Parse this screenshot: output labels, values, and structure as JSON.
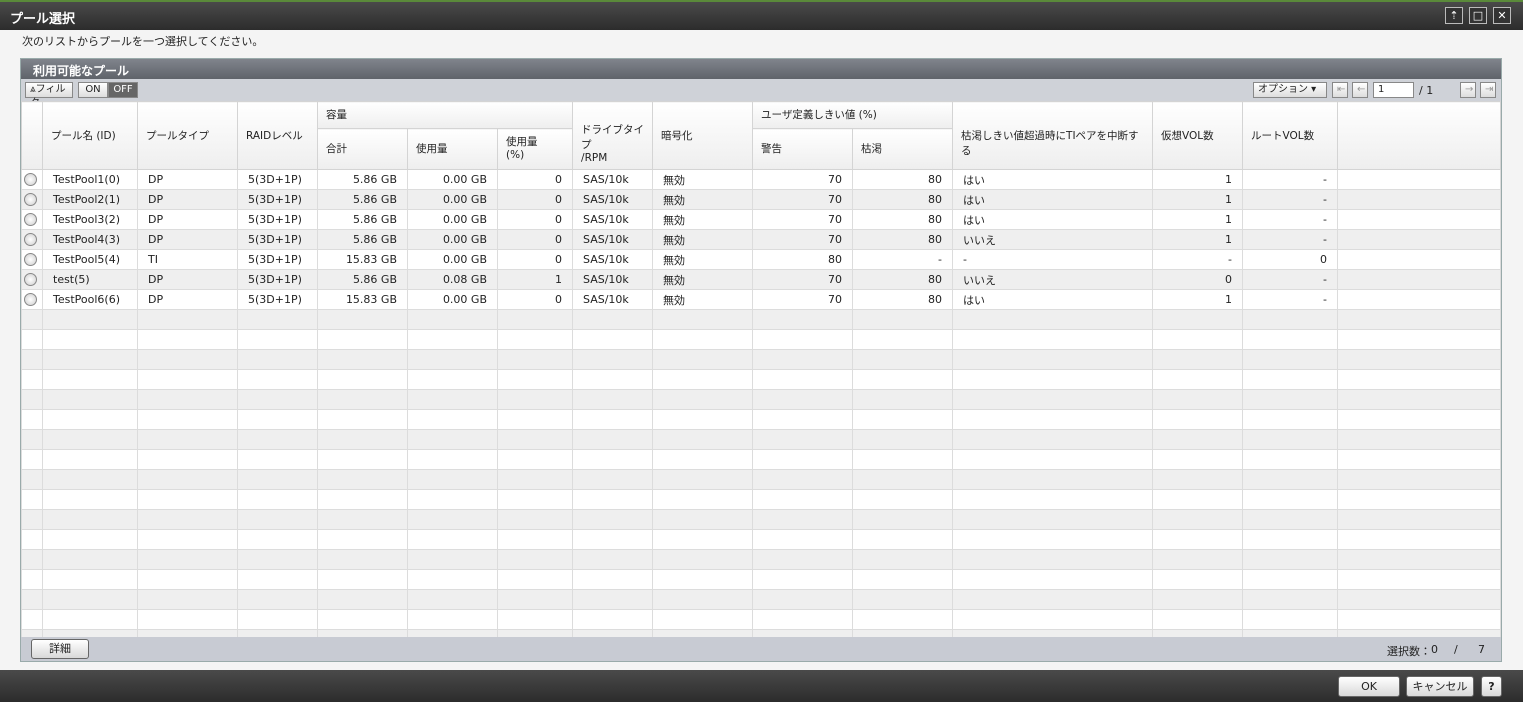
{
  "window": {
    "title": "プール選択",
    "instruction": "次のリストからプールを一つ選択してください。"
  },
  "panel": {
    "title": "利用可能なプール",
    "toolbar": {
      "filter": "フィルタ",
      "on": "ON",
      "off": "OFF",
      "options": "オプション",
      "page": "1",
      "page_total": "/ 1"
    },
    "table": {
      "headers": {
        "name": "プール名 (ID)",
        "type": "プールタイプ",
        "raid": "RAIDレベル",
        "capacity": "容量",
        "total": "合計",
        "used": "使用量",
        "used_pct": "使用量\n(%)",
        "drive": "ドライブタイプ\n/RPM",
        "encryption": "暗号化",
        "threshold": "ユーザ定義しきい値 (%)",
        "warning": "警告",
        "depletion": "枯渇",
        "suspend": "枯渇しきい値超過時にTIペアを中断する",
        "vvol": "仮想VOL数",
        "rootvol": "ルートVOL数"
      },
      "rows": [
        [
          "TestPool1(0)",
          "DP",
          "5(3D+1P)",
          "5.86 GB",
          "0.00 GB",
          "0",
          "SAS/10k",
          "無効",
          "70",
          "80",
          "はい",
          "1",
          "-"
        ],
        [
          "TestPool2(1)",
          "DP",
          "5(3D+1P)",
          "5.86 GB",
          "0.00 GB",
          "0",
          "SAS/10k",
          "無効",
          "70",
          "80",
          "はい",
          "1",
          "-"
        ],
        [
          "TestPool3(2)",
          "DP",
          "5(3D+1P)",
          "5.86 GB",
          "0.00 GB",
          "0",
          "SAS/10k",
          "無効",
          "70",
          "80",
          "はい",
          "1",
          "-"
        ],
        [
          "TestPool4(3)",
          "DP",
          "5(3D+1P)",
          "5.86 GB",
          "0.00 GB",
          "0",
          "SAS/10k",
          "無効",
          "70",
          "80",
          "いいえ",
          "1",
          "-"
        ],
        [
          "TestPool5(4)",
          "TI",
          "5(3D+1P)",
          "15.83 GB",
          "0.00 GB",
          "0",
          "SAS/10k",
          "無効",
          "80",
          "-",
          "-",
          "-",
          "0"
        ],
        [
          "test(5)",
          "DP",
          "5(3D+1P)",
          "5.86 GB",
          "0.08 GB",
          "1",
          "SAS/10k",
          "無効",
          "70",
          "80",
          "いいえ",
          "0",
          "-"
        ],
        [
          "TestPool6(6)",
          "DP",
          "5(3D+1P)",
          "15.83 GB",
          "0.00 GB",
          "0",
          "SAS/10k",
          "無効",
          "70",
          "80",
          "はい",
          "1",
          "-"
        ]
      ]
    },
    "footer": {
      "details": "詳細",
      "selected_label": "選択数：",
      "selected": "0",
      "sep": "/",
      "count": "7"
    }
  },
  "buttons": {
    "ok": "OK",
    "cancel": "キャンセル",
    "help": "?"
  }
}
